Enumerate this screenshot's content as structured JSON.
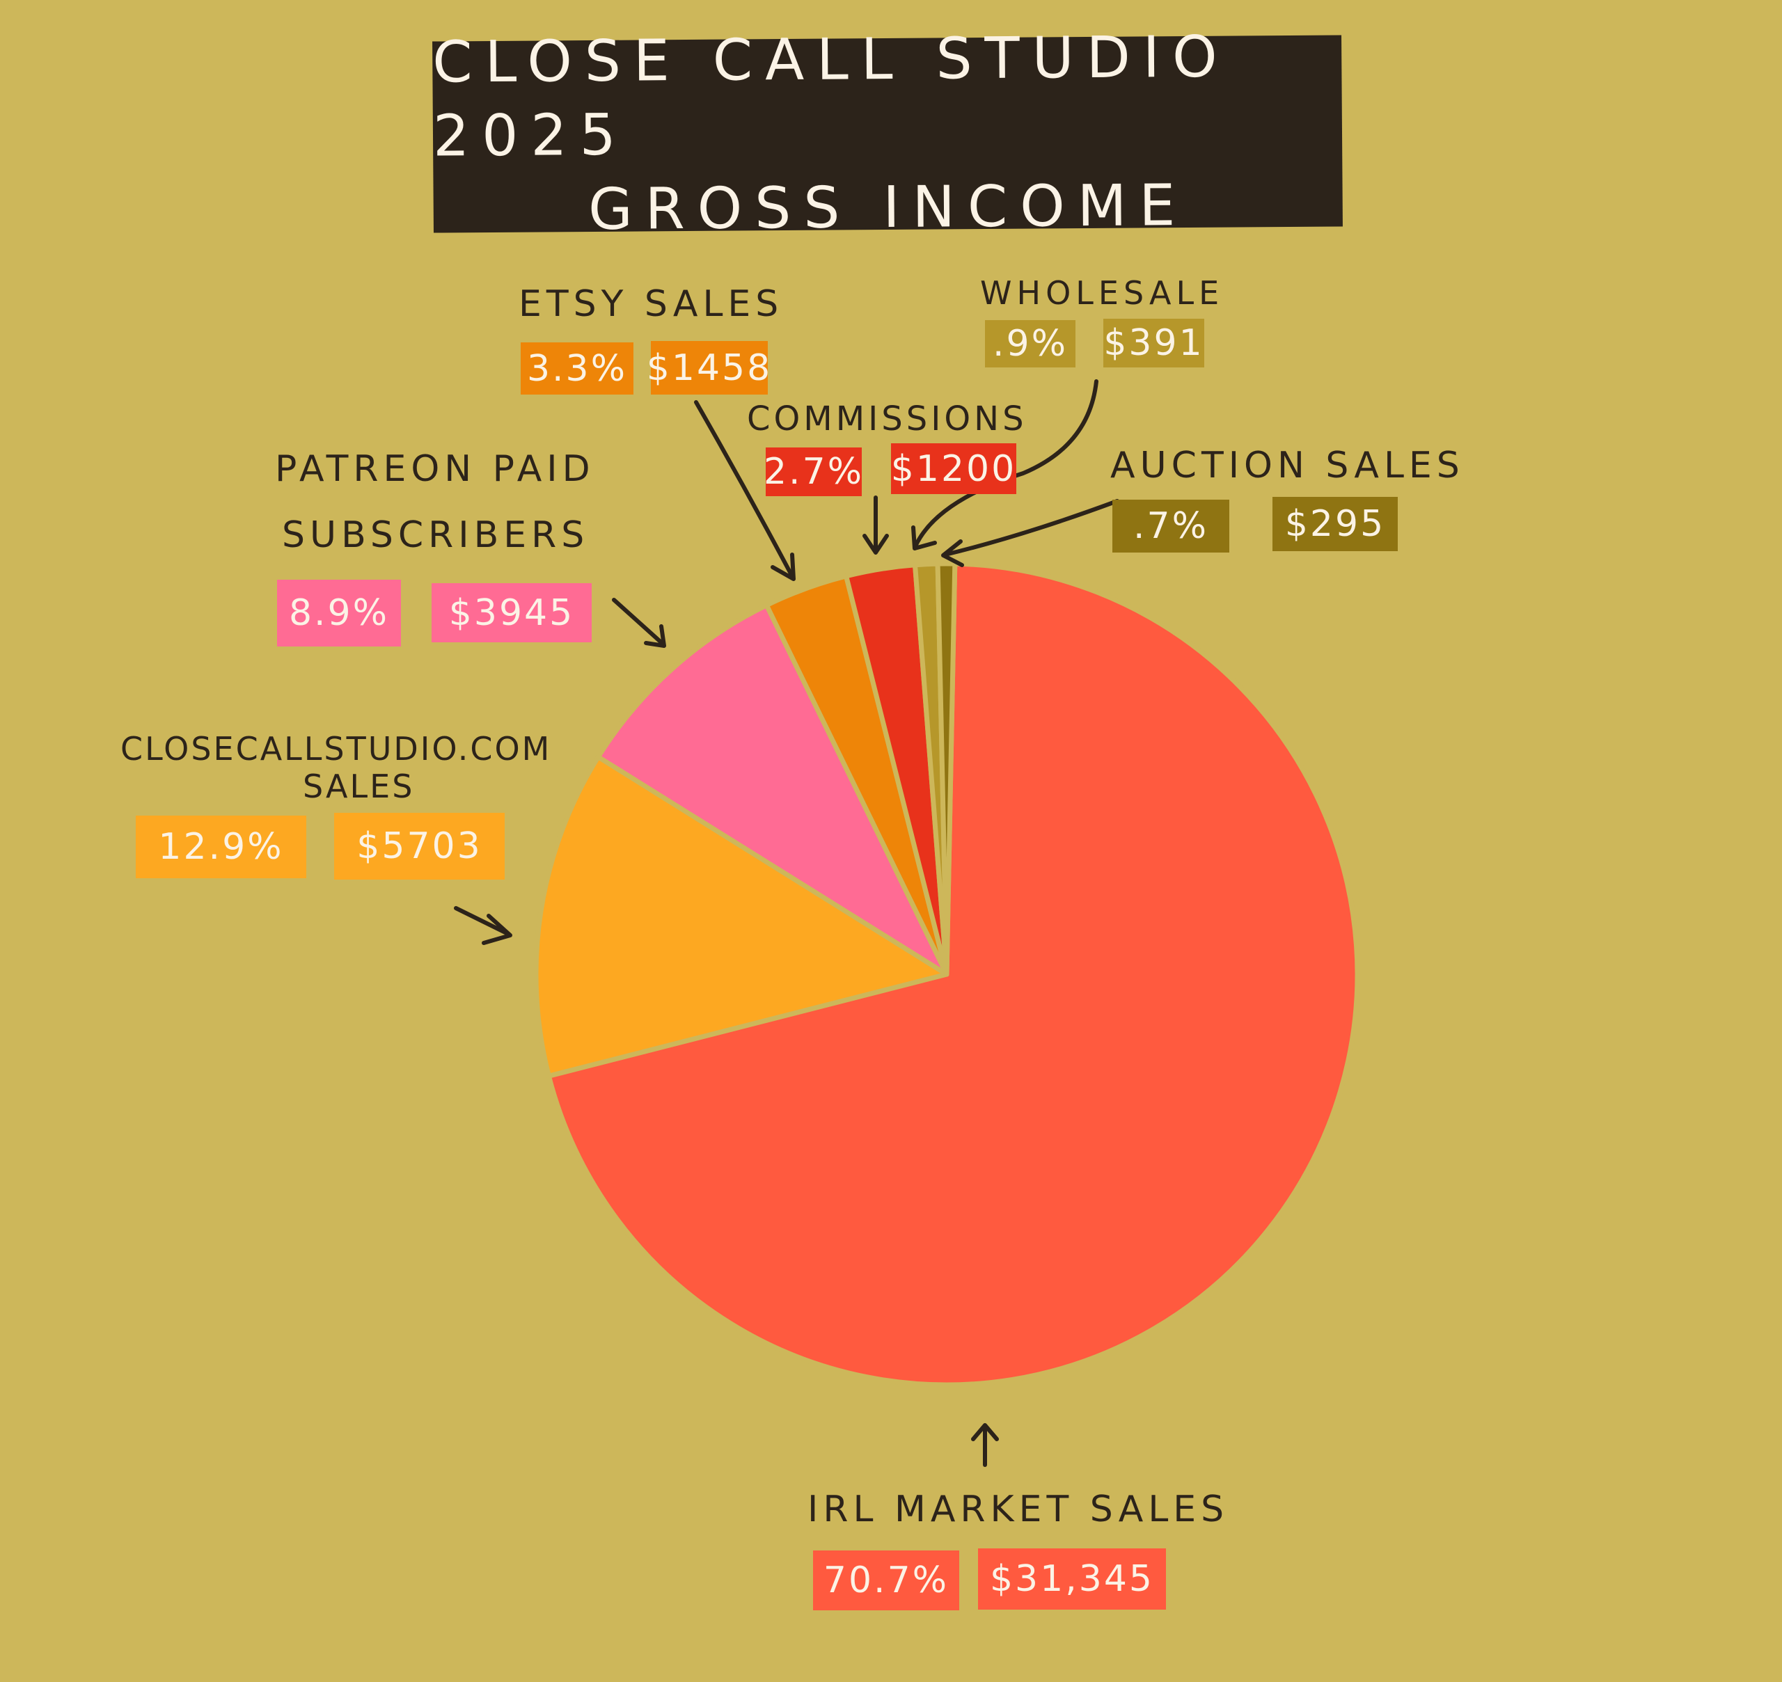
{
  "chart_data": {
    "type": "pie",
    "title_lines": [
      "CLOSE CALL STUDIO 2025",
      "GROSS INCOME"
    ],
    "slices": [
      {
        "label_lines": [
          "IRL MARKET SALES"
        ],
        "percent_label": "70.7%",
        "amount_label": "$31,345",
        "value": 31345,
        "color": "#ff5a3f"
      },
      {
        "label_lines": [
          "CLOSECALLSTUDIO.COM",
          "SALES"
        ],
        "percent_label": "12.9%",
        "amount_label": "$5703",
        "value": 5703,
        "color": "#fda821"
      },
      {
        "label_lines": [
          "PATREON PAID",
          "SUBSCRIBERS"
        ],
        "percent_label": "8.9%",
        "amount_label": "$3945",
        "value": 3945,
        "color": "#ff6b94"
      },
      {
        "label_lines": [
          "ETSY SALES"
        ],
        "percent_label": "3.3%",
        "amount_label": "$1458",
        "value": 1458,
        "color": "#ee8508"
      },
      {
        "label_lines": [
          "COMMISSIONS"
        ],
        "percent_label": "2.7%",
        "amount_label": "$1200",
        "value": 1200,
        "color": "#e8321b"
      },
      {
        "label_lines": [
          "WHOLESALE"
        ],
        "percent_label": ".9%",
        "amount_label": "$391",
        "value": 391,
        "color": "#b6972a"
      },
      {
        "label_lines": [
          "AUCTION SALES"
        ],
        "percent_label": ".7%",
        "amount_label": "$295",
        "value": 295,
        "color": "#8f7412"
      }
    ]
  },
  "colors": {
    "background": "#cdb75a",
    "title_box": "#2c231a",
    "ink": "#2c231a",
    "tag_text": "#fbf3e6"
  }
}
